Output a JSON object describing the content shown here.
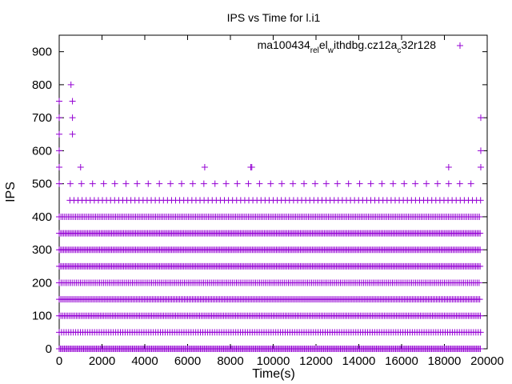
{
  "chart_data": {
    "type": "scatter",
    "title": "IPS vs Time for l.i1",
    "xlabel": "Time(s)",
    "ylabel": "IPS",
    "xlim": [
      0,
      20000
    ],
    "ylim": [
      0,
      950
    ],
    "xticks": [
      0,
      2000,
      4000,
      6000,
      8000,
      10000,
      12000,
      14000,
      16000,
      18000,
      20000
    ],
    "yticks": [
      0,
      100,
      200,
      300,
      400,
      500,
      600,
      700,
      800,
      900
    ],
    "grid": false,
    "legend_position": "top-right",
    "series": [
      {
        "name_main": "ma100434",
        "name_sub1": "rel",
        "name_mid": "el",
        "name_sub2": "w",
        "name_mid2": "ithdbg.cz12a",
        "name_sub3": "c",
        "name_tail": "32r128",
        "marker": "plus",
        "color": "#9400d3",
        "bands": [
          {
            "y": 0,
            "x_start": 0,
            "x_end": 19700,
            "step": 60
          },
          {
            "y": 50,
            "x_start": 0,
            "x_end": 19700,
            "step": 110
          },
          {
            "y": 100,
            "x_start": 0,
            "x_end": 19700,
            "step": 80
          },
          {
            "y": 150,
            "x_start": 0,
            "x_end": 19700,
            "step": 75
          },
          {
            "y": 200,
            "x_start": 0,
            "x_end": 19700,
            "step": 90
          },
          {
            "y": 250,
            "x_start": 0,
            "x_end": 19700,
            "step": 70
          },
          {
            "y": 300,
            "x_start": 0,
            "x_end": 19700,
            "step": 70
          },
          {
            "y": 350,
            "x_start": 0,
            "x_end": 19700,
            "step": 70
          },
          {
            "y": 400,
            "x_start": 0,
            "x_end": 19700,
            "step": 85
          },
          {
            "y": 450,
            "x_start": 500,
            "x_end": 19700,
            "step": 190
          },
          {
            "y": 500,
            "x_start": 0,
            "x_end": 19700,
            "step": 520
          }
        ],
        "outliers": [
          {
            "x": 0,
            "y": 750
          },
          {
            "x": 0,
            "y": 700
          },
          {
            "x": 0,
            "y": 650
          },
          {
            "x": 0,
            "y": 550
          },
          {
            "x": 0,
            "y": 600
          },
          {
            "x": 550,
            "y": 800
          },
          {
            "x": 620,
            "y": 750
          },
          {
            "x": 620,
            "y": 700
          },
          {
            "x": 620,
            "y": 650
          },
          {
            "x": 1000,
            "y": 550
          },
          {
            "x": 6800,
            "y": 550
          },
          {
            "x": 8950,
            "y": 550
          },
          {
            "x": 9000,
            "y": 550
          },
          {
            "x": 18200,
            "y": 550
          },
          {
            "x": 19700,
            "y": 700
          },
          {
            "x": 19700,
            "y": 600
          },
          {
            "x": 19700,
            "y": 550
          }
        ]
      }
    ]
  }
}
